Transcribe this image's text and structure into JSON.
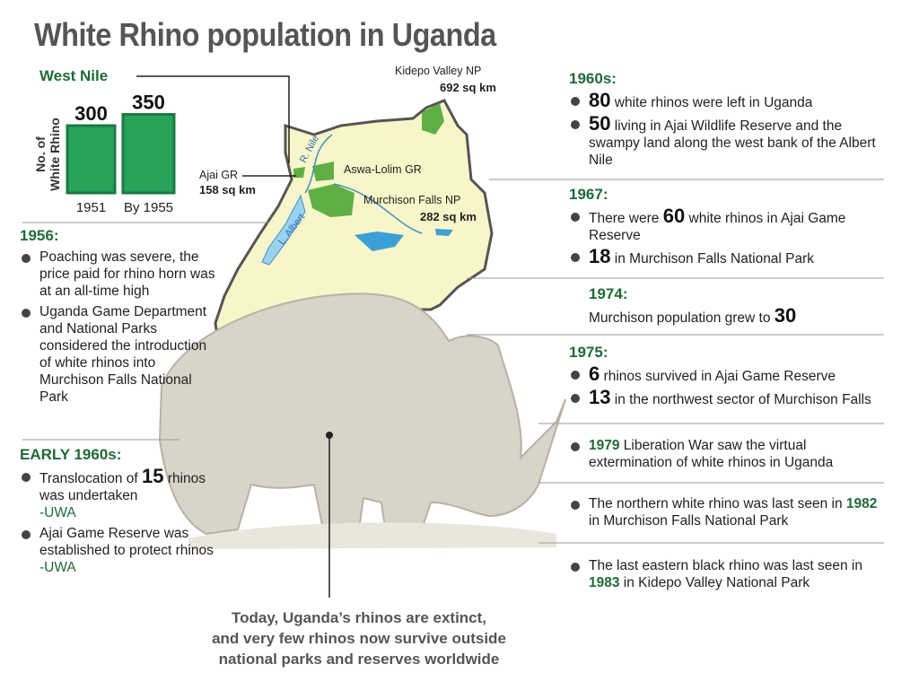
{
  "title": "White Rhino population in Uganda",
  "west_nile_chart": {
    "title": "West Nile",
    "axis_label": [
      "No. of",
      "White Rhino"
    ],
    "categories": [
      "1951",
      "By 1955"
    ],
    "values": [
      300,
      350
    ]
  },
  "map": {
    "labels": [
      {
        "name": "Kidepo Valley NP",
        "area": "692 sq km"
      },
      {
        "name": "Ajai GR",
        "area": "158 sq km"
      },
      {
        "name": "Aswa-Lolim GR"
      },
      {
        "name": "Murchison Falls NP",
        "area": "282 sq km"
      },
      {
        "name": "R. Nile"
      },
      {
        "name": "L. Albert"
      }
    ]
  },
  "left_timeline": [
    {
      "heading": "1956:",
      "items": [
        [
          {
            "text": "Poaching was severe, the price paid for rhino horn was at an all-time high"
          }
        ],
        [
          {
            "text": "Uganda Game Department and National Parks considered the introduction of white rhinos into Murchison Falls National Park"
          }
        ]
      ]
    },
    {
      "heading": "EARLY 1960s:",
      "items": [
        [
          {
            "text": "Translocation of"
          },
          {
            "number": 15
          },
          {
            "text": "rhinos was undertaken"
          },
          {
            "source": "-UWA"
          }
        ],
        [
          {
            "text": "Ajai Game Reserve was established to protect rhinos"
          },
          {
            "source": "-UWA"
          }
        ]
      ]
    }
  ],
  "right_timeline": [
    {
      "heading": "1960s:",
      "items": [
        [
          {
            "number": 80
          },
          {
            "text": "white rhinos were left in Uganda"
          }
        ],
        [
          {
            "number": 50
          },
          {
            "text": "living in Ajai Wildlife Reserve and the swampy land along the west bank of the Albert Nile"
          }
        ]
      ]
    },
    {
      "heading": "1967:",
      "items": [
        [
          {
            "text": "There were"
          },
          {
            "number": 60
          },
          {
            "text": "white rhinos in Ajai Game Reserve"
          }
        ],
        [
          {
            "number": 18
          },
          {
            "text": "in Murchison Falls National Park"
          }
        ]
      ]
    },
    {
      "heading": "1974:",
      "plain": true,
      "items": [
        [
          {
            "text": "Murchison population grew to"
          },
          {
            "number": 30
          }
        ]
      ]
    },
    {
      "heading": "1975:",
      "items": [
        [
          {
            "number": 6
          },
          {
            "text": "rhinos survived in Ajai Game Reserve"
          }
        ],
        [
          {
            "number": 13
          },
          {
            "text": "in the northwest sector of Murchison Falls"
          }
        ]
      ]
    },
    {
      "items": [
        [
          {
            "year": "1979"
          },
          {
            "text": "Liberation War saw the virtual extermination of white rhinos in Uganda"
          }
        ]
      ]
    },
    {
      "items": [
        [
          {
            "text": "The northern white rhino was last seen in"
          },
          {
            "year": "1982"
          },
          {
            "text": "in Murchison Falls National Park"
          }
        ]
      ]
    },
    {
      "items": [
        [
          {
            "text": "The last eastern black rhino was last seen in"
          },
          {
            "year": "1983"
          },
          {
            "text": "in Kidepo Valley National Park"
          }
        ]
      ]
    }
  ],
  "footer": [
    "Today, Uganda’s rhinos are extinct,",
    "and very few rhinos now survive outside",
    "national parks and reserves worldwide"
  ]
}
